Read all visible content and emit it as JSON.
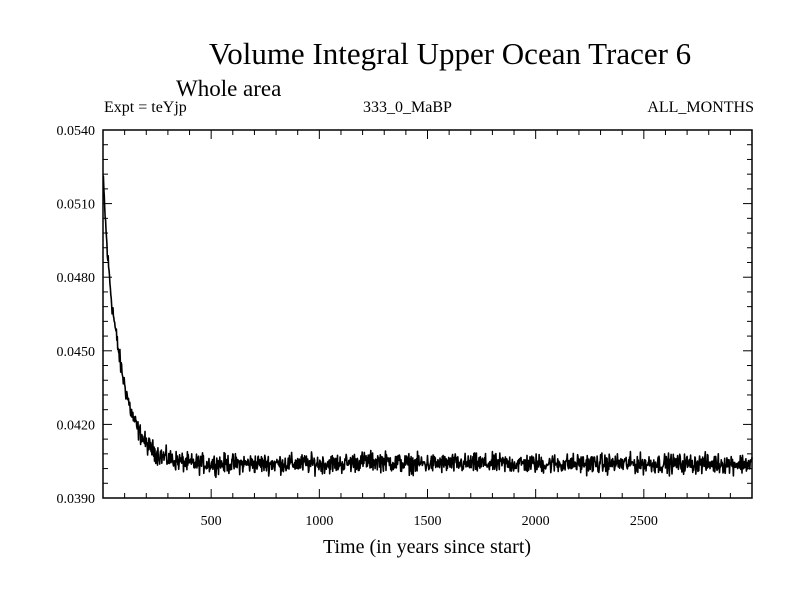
{
  "chart_data": {
    "type": "line",
    "title": "Volume Integral Upper Ocean Tracer 6",
    "subtitle": "Whole area",
    "annotations": {
      "left": "Expt = teYjp",
      "center": "333_0_MaBP",
      "right": "ALL_MONTHS"
    },
    "xlabel": "Time (in years since start)",
    "ylabel": "",
    "xlim": [
      0,
      3000
    ],
    "ylim": [
      0.039,
      0.054
    ],
    "xticks": [
      500,
      1000,
      1500,
      2000,
      2500
    ],
    "xtick_labels": [
      "500",
      "1000",
      "1500",
      "2000",
      "2500"
    ],
    "yticks": [
      0.039,
      0.042,
      0.045,
      0.048,
      0.051,
      0.054
    ],
    "ytick_labels": [
      "0.0390",
      "0.0420",
      "0.0450",
      "0.0480",
      "0.0510",
      "0.0540"
    ],
    "series": [
      {
        "name": "Tracer 6",
        "color": "#000000",
        "x": [
          0,
          10,
          20,
          40,
          60,
          80,
          100,
          130,
          160,
          200,
          250,
          300,
          350,
          400,
          500,
          600,
          700,
          800,
          900,
          1000,
          1100,
          1200,
          1300,
          1400,
          1500,
          1600,
          1700,
          1800,
          1900,
          2000,
          2100,
          2200,
          2300,
          2400,
          2500,
          2600,
          2700,
          2800,
          2900,
          3000
        ],
        "y": [
          0.0521,
          0.0505,
          0.049,
          0.047,
          0.0457,
          0.0445,
          0.0436,
          0.0425,
          0.0418,
          0.0412,
          0.0408,
          0.0406,
          0.0405,
          0.0404,
          0.0404,
          0.0404,
          0.0404,
          0.0404,
          0.0404,
          0.0404,
          0.0404,
          0.0405,
          0.0405,
          0.0404,
          0.0404,
          0.0404,
          0.0404,
          0.0404,
          0.0404,
          0.0404,
          0.0404,
          0.0404,
          0.0404,
          0.0404,
          0.0404,
          0.0404,
          0.0404,
          0.0404,
          0.0404,
          0.0404
        ],
        "noise_amplitude": 0.0003
      }
    ]
  }
}
